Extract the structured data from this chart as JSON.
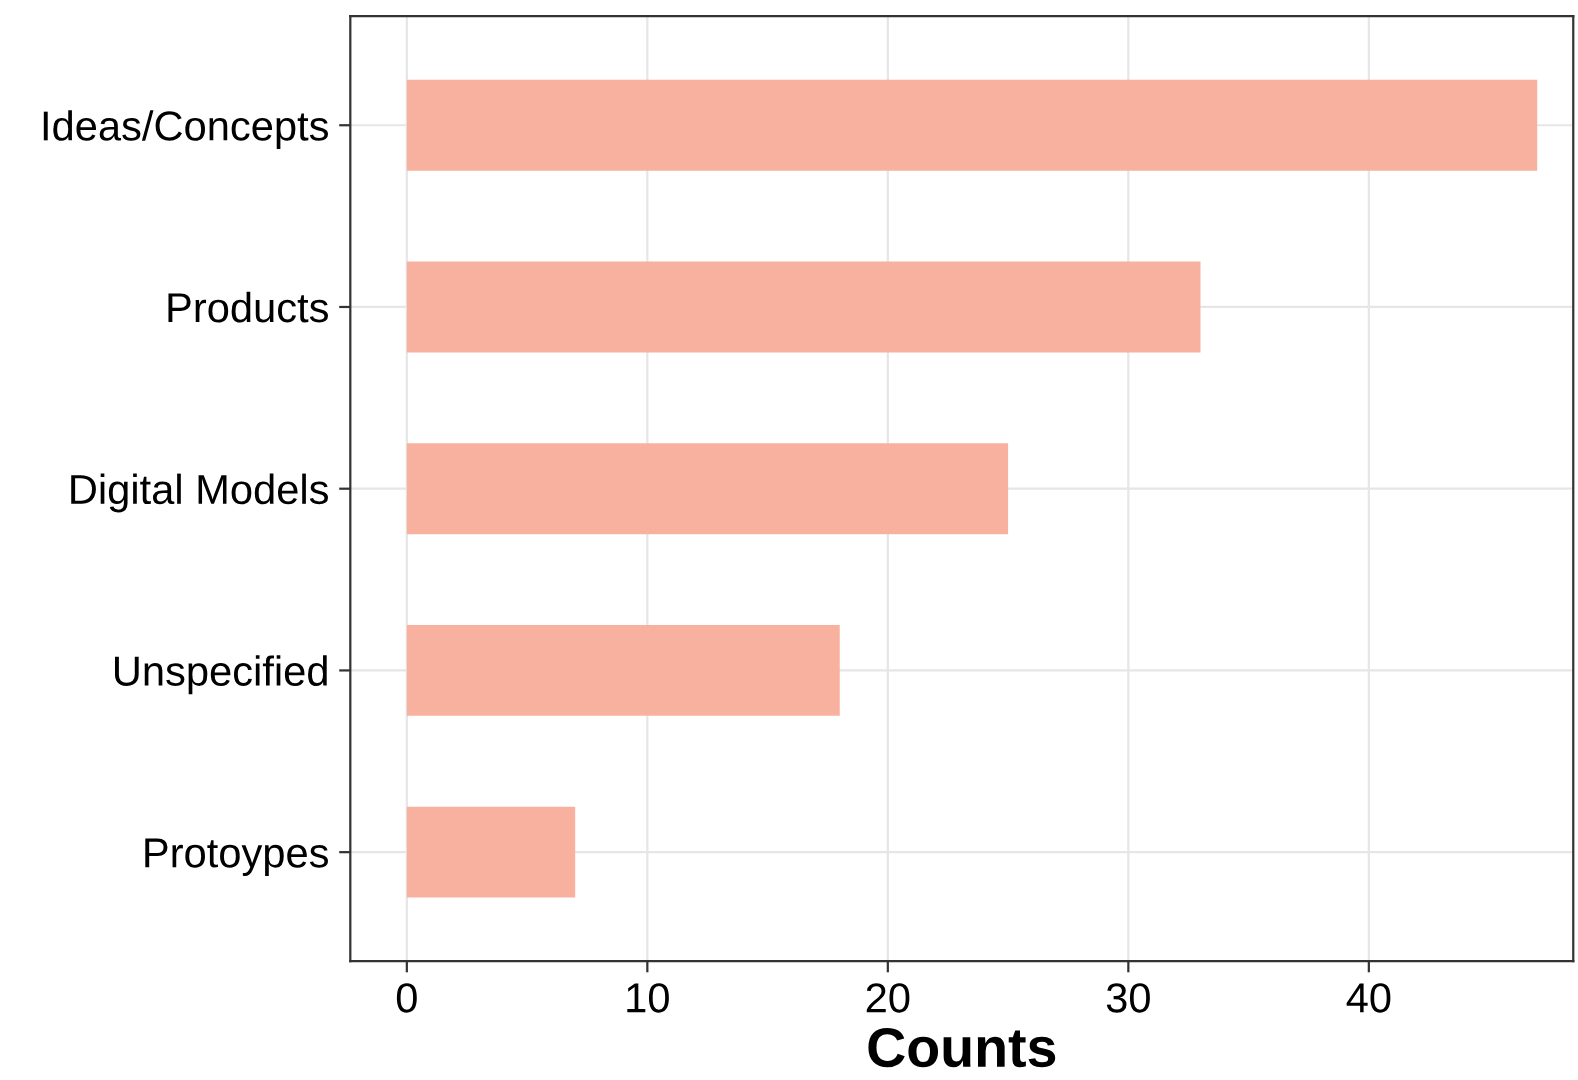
{
  "chart_data": {
    "type": "bar",
    "orientation": "horizontal",
    "xlabel": "Counts",
    "categories": [
      "Ideas/Concepts",
      "Products",
      "Digital Models",
      "Unspecified",
      "Protoypes"
    ],
    "values": [
      47,
      33,
      25,
      18,
      7
    ],
    "color": "#f8b09f",
    "xlim": [
      -2.35,
      48.5
    ],
    "xticks": [
      0,
      10,
      20,
      30,
      40
    ],
    "grid": true
  }
}
